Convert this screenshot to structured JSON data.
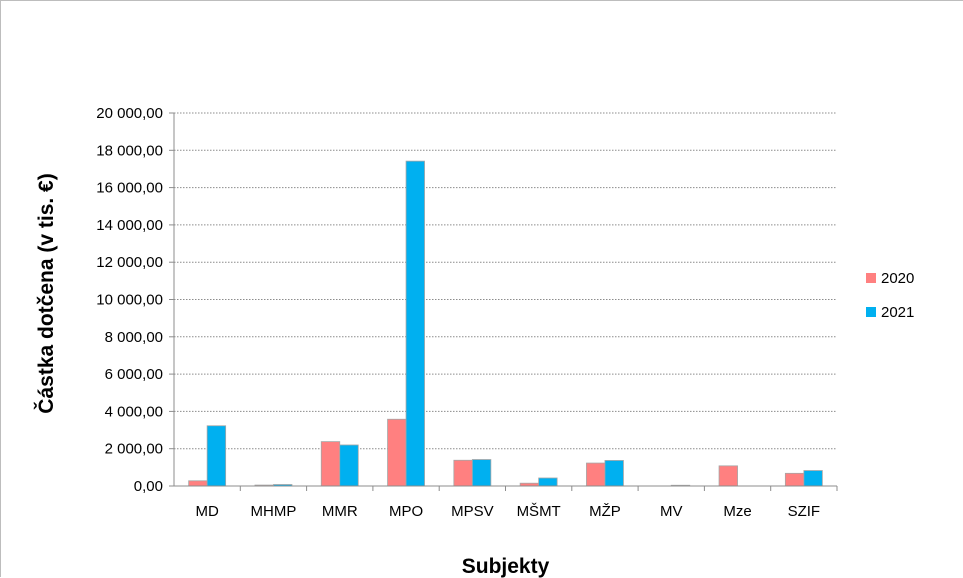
{
  "chart_data": {
    "type": "bar",
    "title": "",
    "xlabel": "Subjekty",
    "ylabel": "Částka dotčena (v tis. €)",
    "ylim": [
      0,
      20000
    ],
    "yticks": [
      0,
      2000,
      4000,
      6000,
      8000,
      10000,
      12000,
      14000,
      16000,
      18000,
      20000
    ],
    "ytick_labels": [
      "0,00",
      "2 000,00",
      "4 000,00",
      "6 000,00",
      "8 000,00",
      "10 000,00",
      "12 000,00",
      "14 000,00",
      "16 000,00",
      "18 000,00",
      "20 000,00"
    ],
    "categories": [
      "MD",
      "MHMP",
      "MMR",
      "MPO",
      "MPSV",
      "MŠMT",
      "MŽP",
      "MV",
      "Mze",
      "SZIF"
    ],
    "series": [
      {
        "name": "2020",
        "color": "#ff8080",
        "values": [
          280,
          50,
          2380,
          3580,
          1380,
          150,
          1230,
          0,
          1080,
          680
        ]
      },
      {
        "name": "2021",
        "color": "#00b0f0",
        "values": [
          3230,
          80,
          2200,
          17420,
          1420,
          430,
          1370,
          40,
          0,
          830
        ]
      }
    ],
    "grid": true,
    "legend": "right"
  }
}
